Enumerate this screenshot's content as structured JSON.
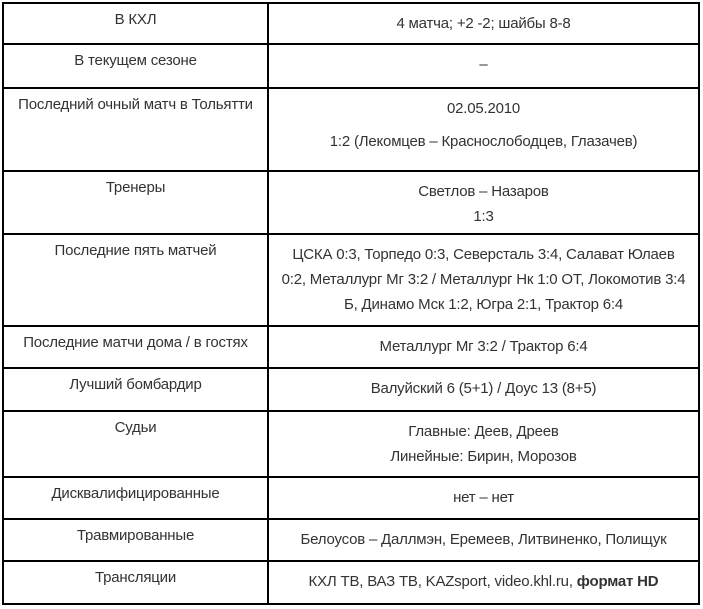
{
  "colors": {
    "border": "#000000",
    "text": "#333333",
    "background": "#ffffff"
  },
  "table": {
    "rows": [
      {
        "label": "В КХЛ",
        "paragraphs": [
          [
            [
              {
                "text": "4 матча; +2 -2; шайбы 8-8",
                "bold": false
              }
            ]
          ]
        ]
      },
      {
        "label": "В текущем сезоне",
        "paragraphs": [
          [
            [
              {
                "text": "–",
                "bold": false
              }
            ]
          ]
        ]
      },
      {
        "label": "Последний очный матч в Тольятти",
        "paragraphs": [
          [
            [
              {
                "text": "02.05.2010",
                "bold": false
              }
            ]
          ],
          [
            [
              {
                "text": "1:2 (Лекомцев – Краснослободцев, Глазачев)",
                "bold": false
              }
            ]
          ]
        ]
      },
      {
        "label": "Тренеры",
        "paragraphs": [
          [
            [
              {
                "text": "Светлов – Назаров",
                "bold": false
              }
            ],
            [
              {
                "text": "1:3",
                "bold": false
              }
            ]
          ]
        ]
      },
      {
        "label": "Последние пять матчей",
        "paragraphs": [
          [
            [
              {
                "text": "ЦСКА 0:3, Торпедо 0:3, Северсталь 3:4, Салават Юлаев 0:2, Металлург Мг 3:2 / Металлург Нк 1:0 ОТ, Локомотив 3:4 Б, Динамо Мск 1:2, Югра 2:1, Трактор 6:4",
                "bold": false
              }
            ]
          ]
        ]
      },
      {
        "label": "Последние матчи дома / в гостях",
        "paragraphs": [
          [
            [
              {
                "text": "Металлург Мг 3:2 / Трактор 6:4",
                "bold": false
              }
            ]
          ]
        ]
      },
      {
        "label": "Лучший бомбардир",
        "paragraphs": [
          [
            [
              {
                "text": "Валуйский 6 (5+1) / Доус 13 (8+5)",
                "bold": false
              }
            ]
          ]
        ]
      },
      {
        "label": "Судьи",
        "paragraphs": [
          [
            [
              {
                "text": "Главные: Деев, Дреев",
                "bold": false
              }
            ],
            [
              {
                "text": "Линейные: Бирин, Морозов",
                "bold": false
              }
            ]
          ]
        ]
      },
      {
        "label": "Дисквалифицированные",
        "paragraphs": [
          [
            [
              {
                "text": "нет – нет",
                "bold": false
              }
            ]
          ]
        ]
      },
      {
        "label": "Травмированные",
        "paragraphs": [
          [
            [
              {
                "text": "Белоусов – Даллмэн, Еремеев, Литвиненко, Полищук",
                "bold": false
              }
            ]
          ]
        ]
      },
      {
        "label": "Трансляции",
        "paragraphs": [
          [
            [
              {
                "text": "КХЛ ТВ, ВАЗ ТВ, KAZsport, video.khl.ru, ",
                "bold": false
              },
              {
                "text": "формат HD",
                "bold": true
              }
            ]
          ]
        ]
      }
    ]
  }
}
